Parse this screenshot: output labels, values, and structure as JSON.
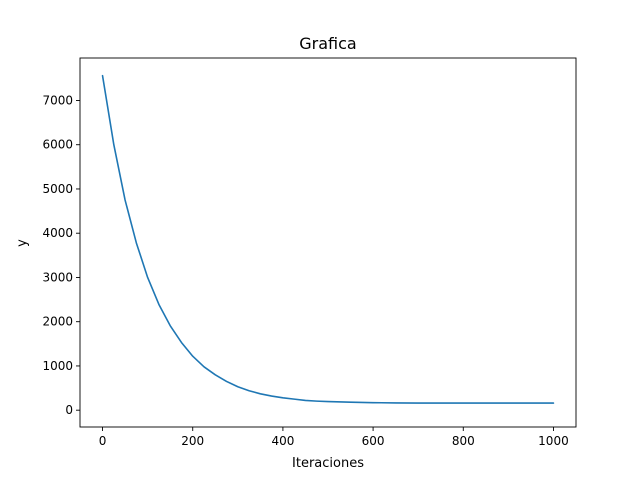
{
  "chart_data": {
    "type": "line",
    "title": "Grafica",
    "xlabel": "Iteraciones",
    "ylabel": "y",
    "xlim": [
      -50,
      1050
    ],
    "ylim": [
      -380,
      7960
    ],
    "xticks": [
      0,
      200,
      400,
      600,
      800,
      1000
    ],
    "yticks": [
      0,
      1000,
      2000,
      3000,
      4000,
      5000,
      6000,
      7000
    ],
    "grid": false,
    "legend": "none",
    "series": [
      {
        "color": "#1f77b4",
        "x": [
          0,
          25,
          50,
          75,
          100,
          125,
          150,
          175,
          200,
          225,
          250,
          275,
          300,
          325,
          350,
          375,
          400,
          425,
          450,
          475,
          500,
          550,
          600,
          650,
          700,
          750,
          800,
          850,
          900,
          950,
          1000
        ],
        "y": [
          7560,
          6000,
          4750,
          3780,
          3000,
          2390,
          1910,
          1530,
          1220,
          980,
          800,
          650,
          530,
          440,
          370,
          320,
          280,
          250,
          220,
          205,
          195,
          180,
          170,
          165,
          162,
          161,
          160,
          160,
          160,
          160,
          160
        ]
      }
    ]
  }
}
